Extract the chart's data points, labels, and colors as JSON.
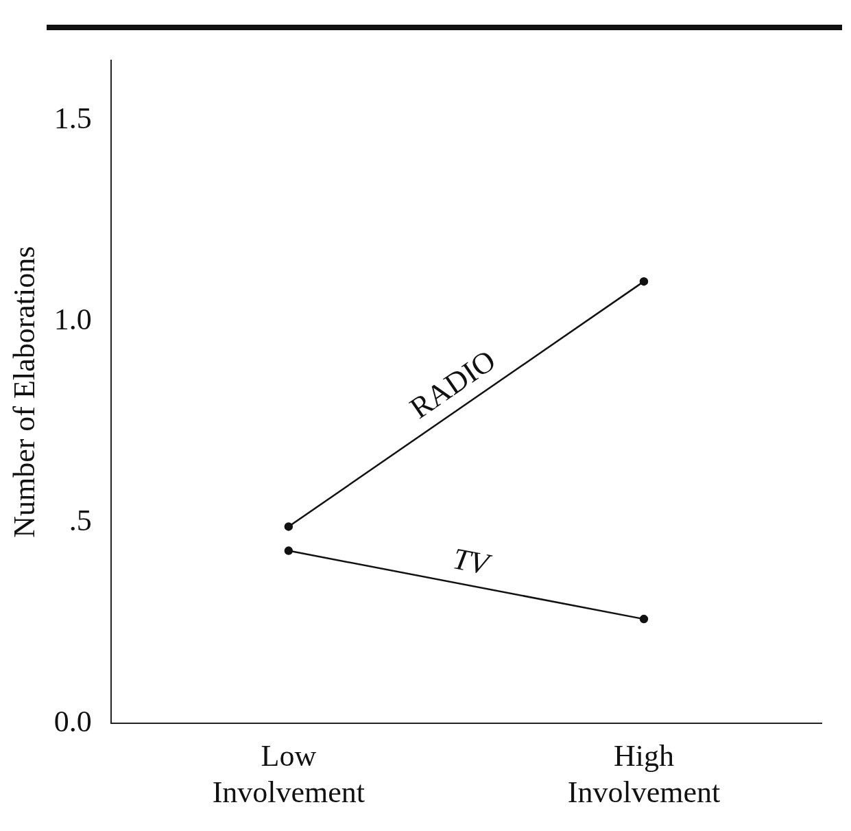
{
  "chart_data": {
    "type": "line",
    "ylabel": "Number of Elaborations",
    "categories": [
      "Low Involvement",
      "High Involvement"
    ],
    "series": [
      {
        "name": "RADIO",
        "color": "#111111",
        "values": [
          0.49,
          1.1
        ]
      },
      {
        "name": "TV",
        "color": "#111111",
        "values": [
          0.43,
          0.26
        ]
      }
    ],
    "ylim": [
      0,
      1.65
    ],
    "yticks": [
      {
        "value": 0,
        "label": "0.0"
      },
      {
        "value": 0.5,
        "label": ".5"
      },
      {
        "value": 1,
        "label": "1.0"
      },
      {
        "value": 1.5,
        "label": "1.5"
      }
    ],
    "grid": false,
    "legend": false,
    "marker": "circle",
    "line_style": "solid"
  }
}
